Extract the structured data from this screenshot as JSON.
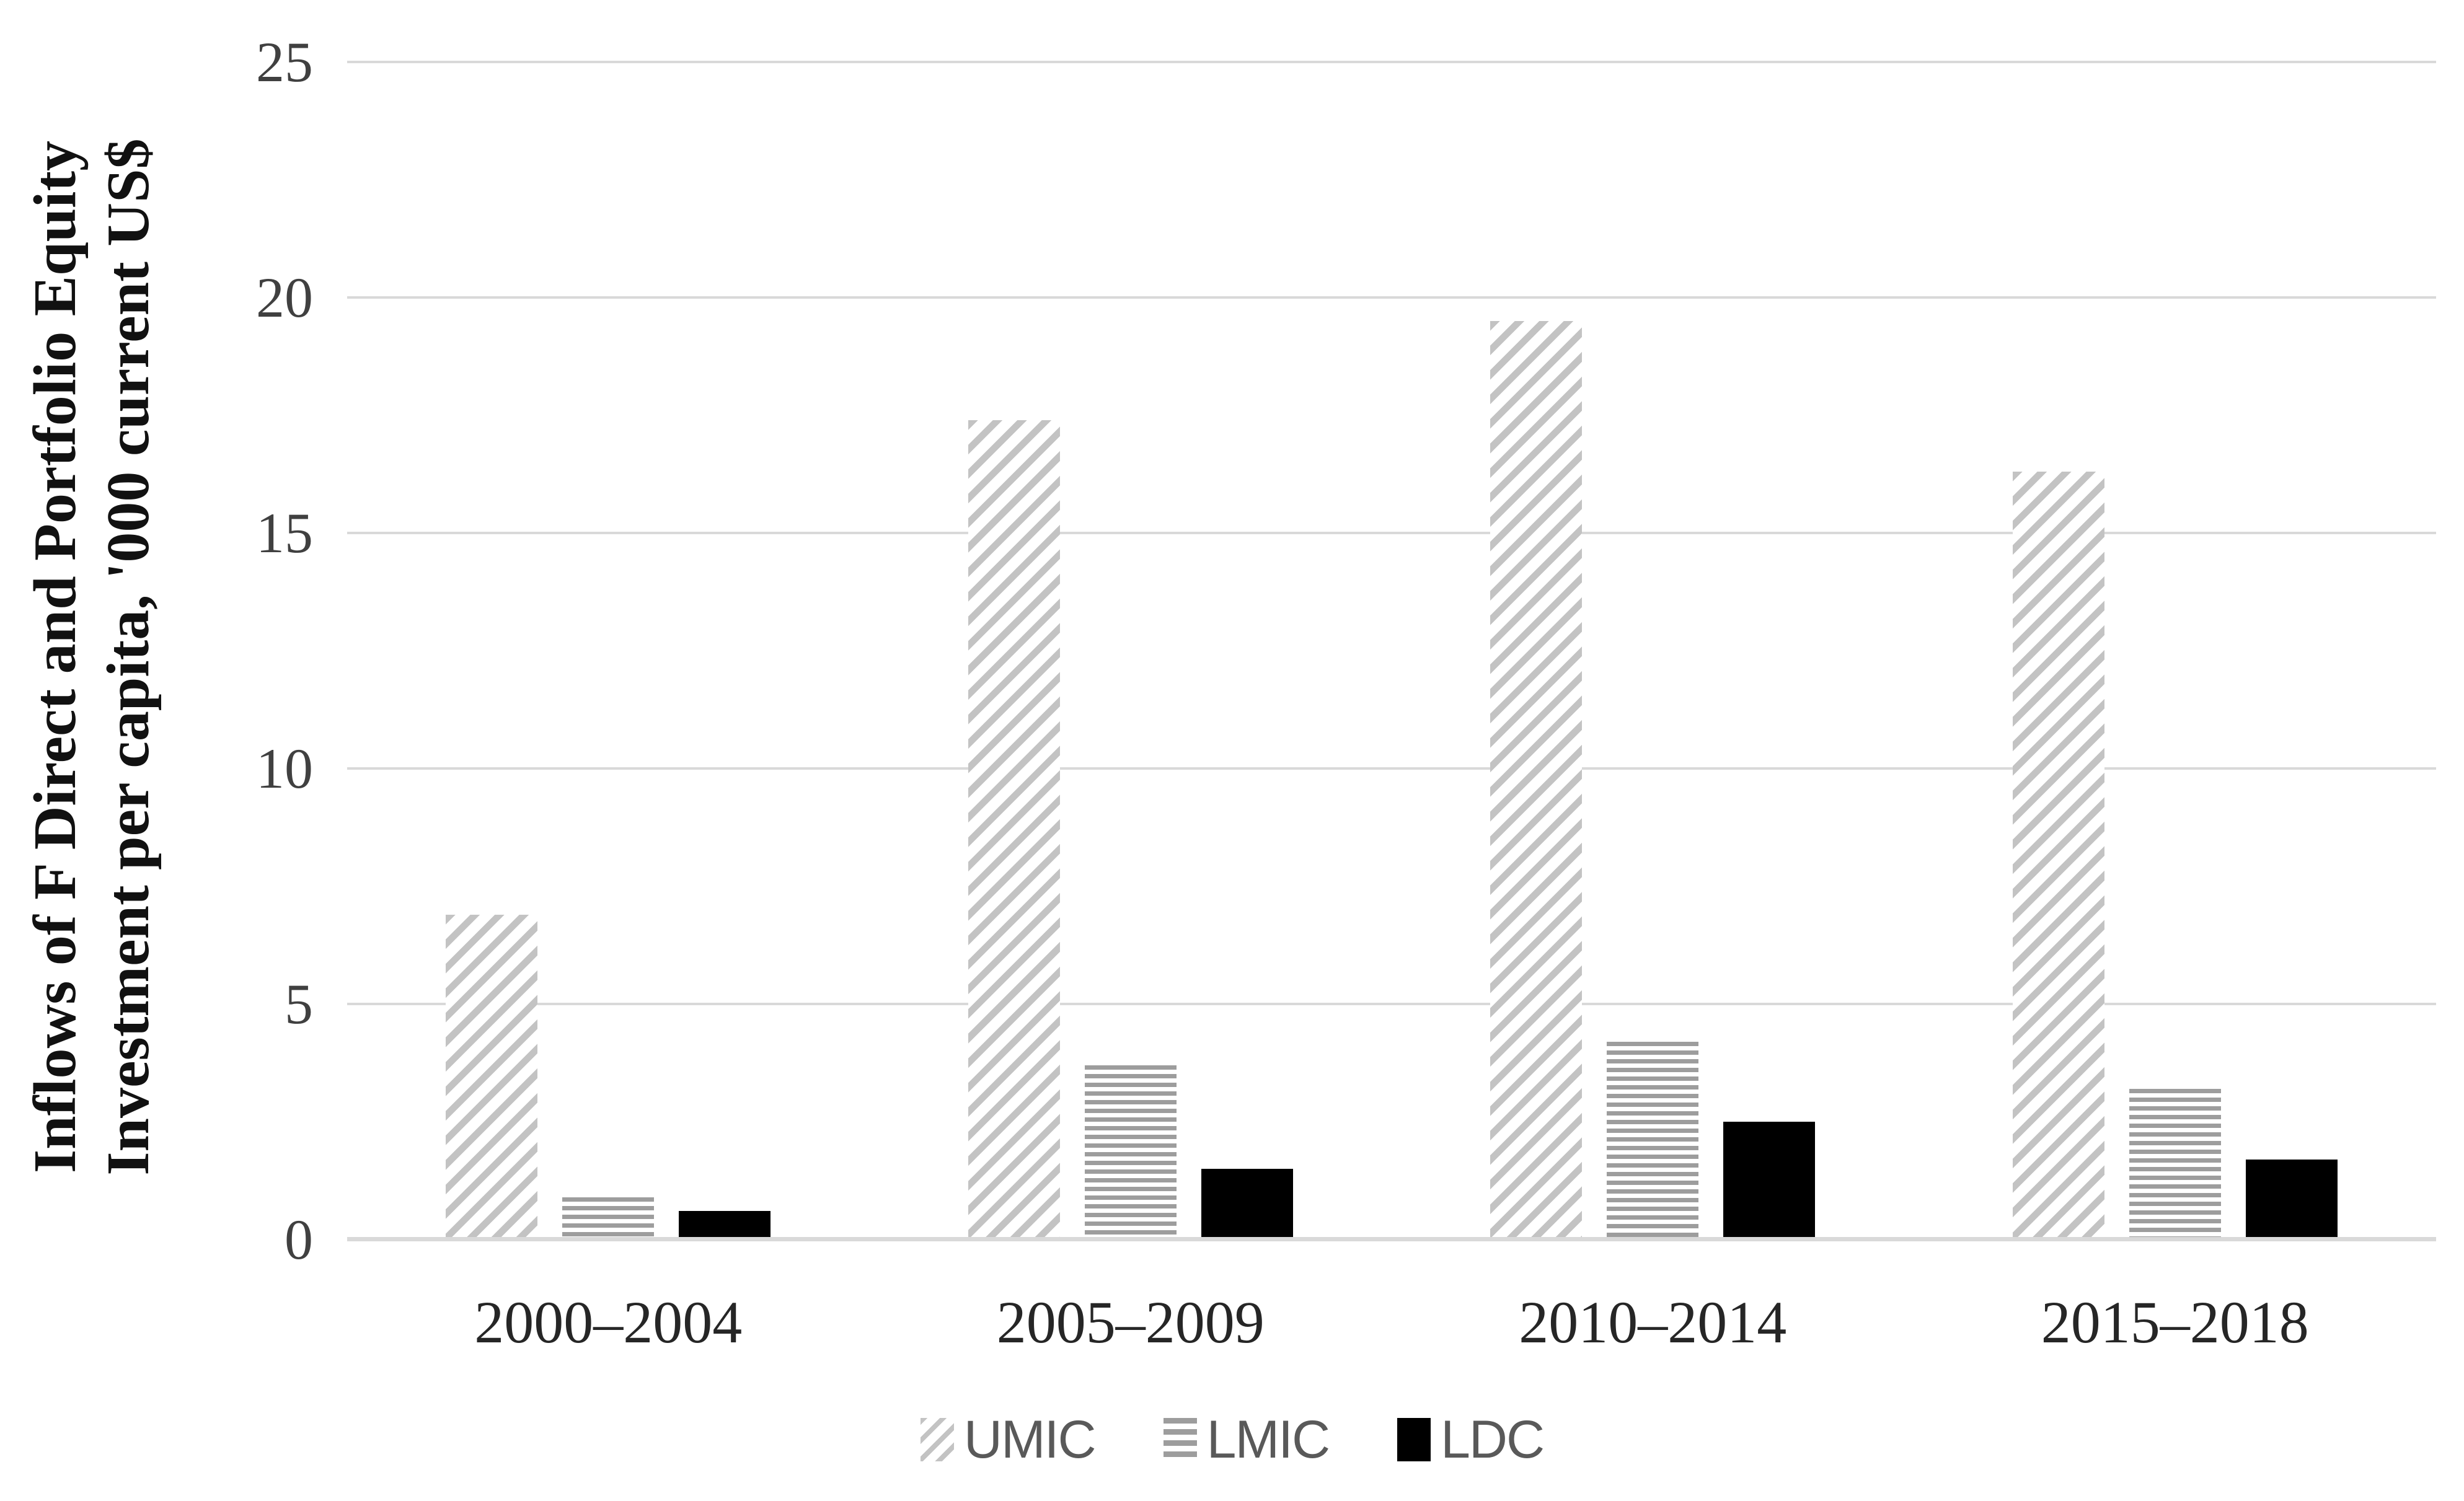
{
  "chart_data": {
    "type": "bar",
    "title": "",
    "categories": [
      "2000–2004",
      "2005–2009",
      "2010–2014",
      "2015–2018"
    ],
    "series": [
      {
        "name": "UMIC",
        "pattern": "diagonal-hatch",
        "color": "#c3c3c3",
        "values": [
          6.9,
          17.4,
          19.5,
          16.3
        ]
      },
      {
        "name": "LMIC",
        "pattern": "horizontal-lines",
        "color": "#9d9d9d",
        "values": [
          0.9,
          3.7,
          4.2,
          3.2
        ]
      },
      {
        "name": "LDC",
        "pattern": "solid",
        "color": "#000000",
        "values": [
          0.6,
          1.5,
          2.5,
          1.7
        ]
      }
    ],
    "ylabel_line1": "Inflows of F Direct and Portfolio Equity",
    "ylabel_line2": "Investment per capita, '000 current US$",
    "ylim": [
      0,
      25
    ],
    "yticks": [
      0,
      5,
      10,
      15,
      20,
      25
    ],
    "grid": true,
    "legend_position": "bottom",
    "xlabel": ""
  },
  "colors": {
    "background": "#ffffff",
    "gridline": "#d9d9d9",
    "axis_line": "#d9d9d9",
    "tick_text": "#404040",
    "category_text": "#262626",
    "legend_text": "#595959"
  }
}
